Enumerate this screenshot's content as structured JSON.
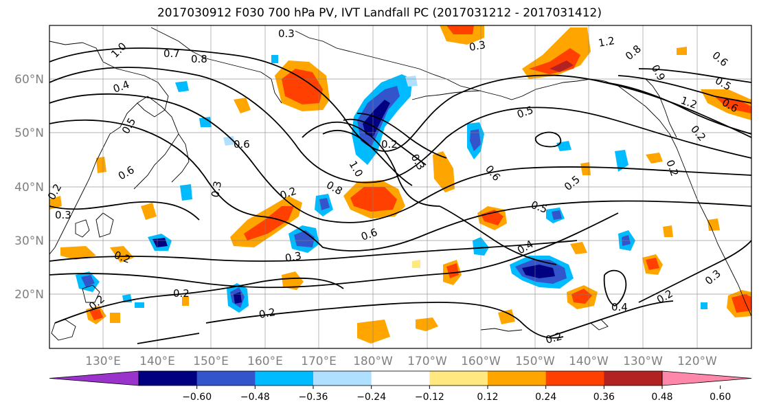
{
  "title": "2017030912 F030 700 hPa PV, IVT Landfall PC (2017031212 - 2017031412)",
  "lat_labels": [
    "60°N",
    "50°N",
    "40°N",
    "30°N",
    "20°N"
  ],
  "lon_labels": [
    "130°E",
    "140°E",
    "150°E",
    "160°E",
    "170°E",
    "180°W",
    "170°W",
    "160°W",
    "150°W",
    "140°W",
    "130°W",
    "120°W"
  ],
  "colorbar": {
    "colors": [
      "#9933cc",
      "#000080",
      "#3355cc",
      "#00bbff",
      "#b0e0ff",
      "#ffffff",
      "#ffe880",
      "#ffa500",
      "#ff4000",
      "#b22222",
      "#ff88aa"
    ],
    "tick_labels": [
      "−0.60",
      "−0.48",
      "−0.36",
      "−0.24",
      "−0.12",
      "0.12",
      "0.24",
      "0.36",
      "0.48",
      "0.60"
    ]
  },
  "contour_labels": [
    "0.3",
    "0.7",
    "0.8",
    "1.0",
    "0.4",
    "0.5",
    "0.6",
    "0.3",
    "0.2",
    "0.3",
    "0.2",
    "0.6",
    "0.8",
    "1.0",
    "0.2",
    "0.3",
    "0.6",
    "0.5",
    "0.5",
    "0.5",
    "0.4",
    "0.2",
    "0.3",
    "0.2",
    "0.2",
    "0.4",
    "0.2",
    "0.3",
    "1.2",
    "0.8",
    "0.6",
    "0.5",
    "1.2",
    "0.6",
    "0.3",
    "0.9",
    "0.6",
    "0.2",
    "0.2",
    "0.2",
    "0.2"
  ],
  "map_data": {
    "projection": "cylindrical",
    "lon_range": [
      "120°E",
      "115°W"
    ],
    "lat_range": [
      "10°N",
      "70°N"
    ],
    "grid": true,
    "fields": [
      "700 hPa PV contours",
      "IVT Landfall PC shading"
    ]
  }
}
